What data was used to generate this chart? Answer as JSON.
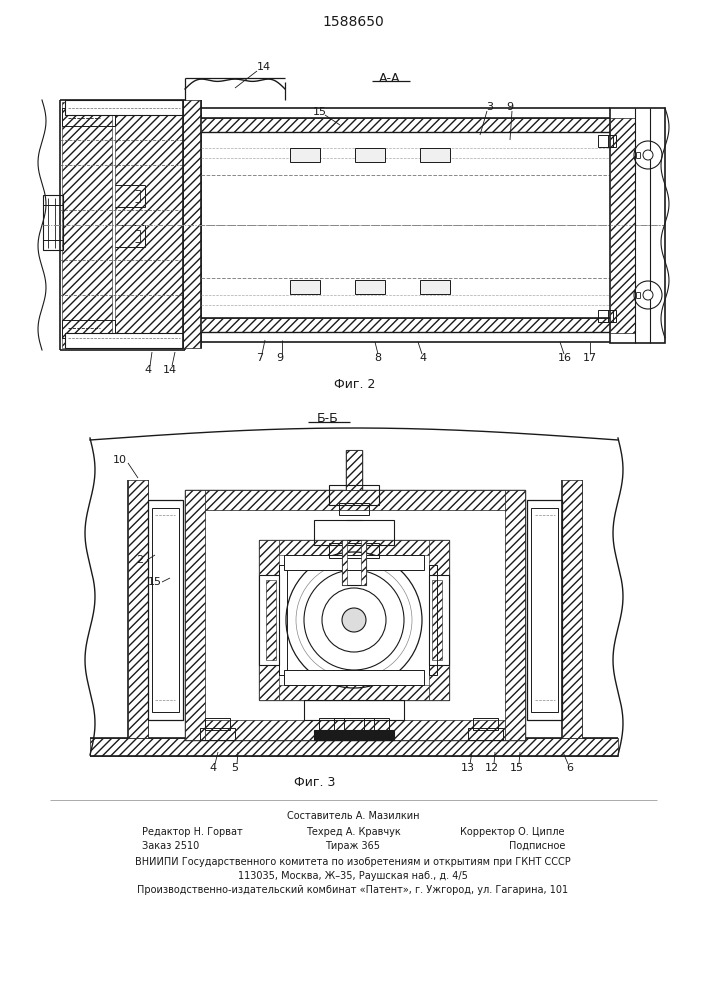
{
  "patent_number": "1588650",
  "fig2_label": "А-А",
  "fig2_caption": "Фиг. 2",
  "fig3_label": "Б-Б",
  "fig3_caption": "Фиг. 3",
  "footer_line0_center": "Составитель А. Мазилкин",
  "footer_line1_left": "Редактор Н. Горват",
  "footer_line1_center": "Техред А. Кравчук",
  "footer_line1_right": "Корректор О. Ципле",
  "footer_line2_left": "Заказ 2510",
  "footer_line2_center": "Тираж 365",
  "footer_line2_right": "Подписное",
  "footer_line3": "ВНИИПИ Государственного комитета по изобретениям и открытиям при ГКНТ СССР",
  "footer_line4": "113035, Москва, Ж–35, Раушская наб., д. 4/5",
  "footer_line5": "Производственно-издательский комбинат «Патент», г. Ужгород, ул. Гагарина, 101",
  "bg_color": "#ffffff",
  "lc": "#1a1a1a",
  "lc_light": "#555555",
  "hatch_color": "#444444"
}
